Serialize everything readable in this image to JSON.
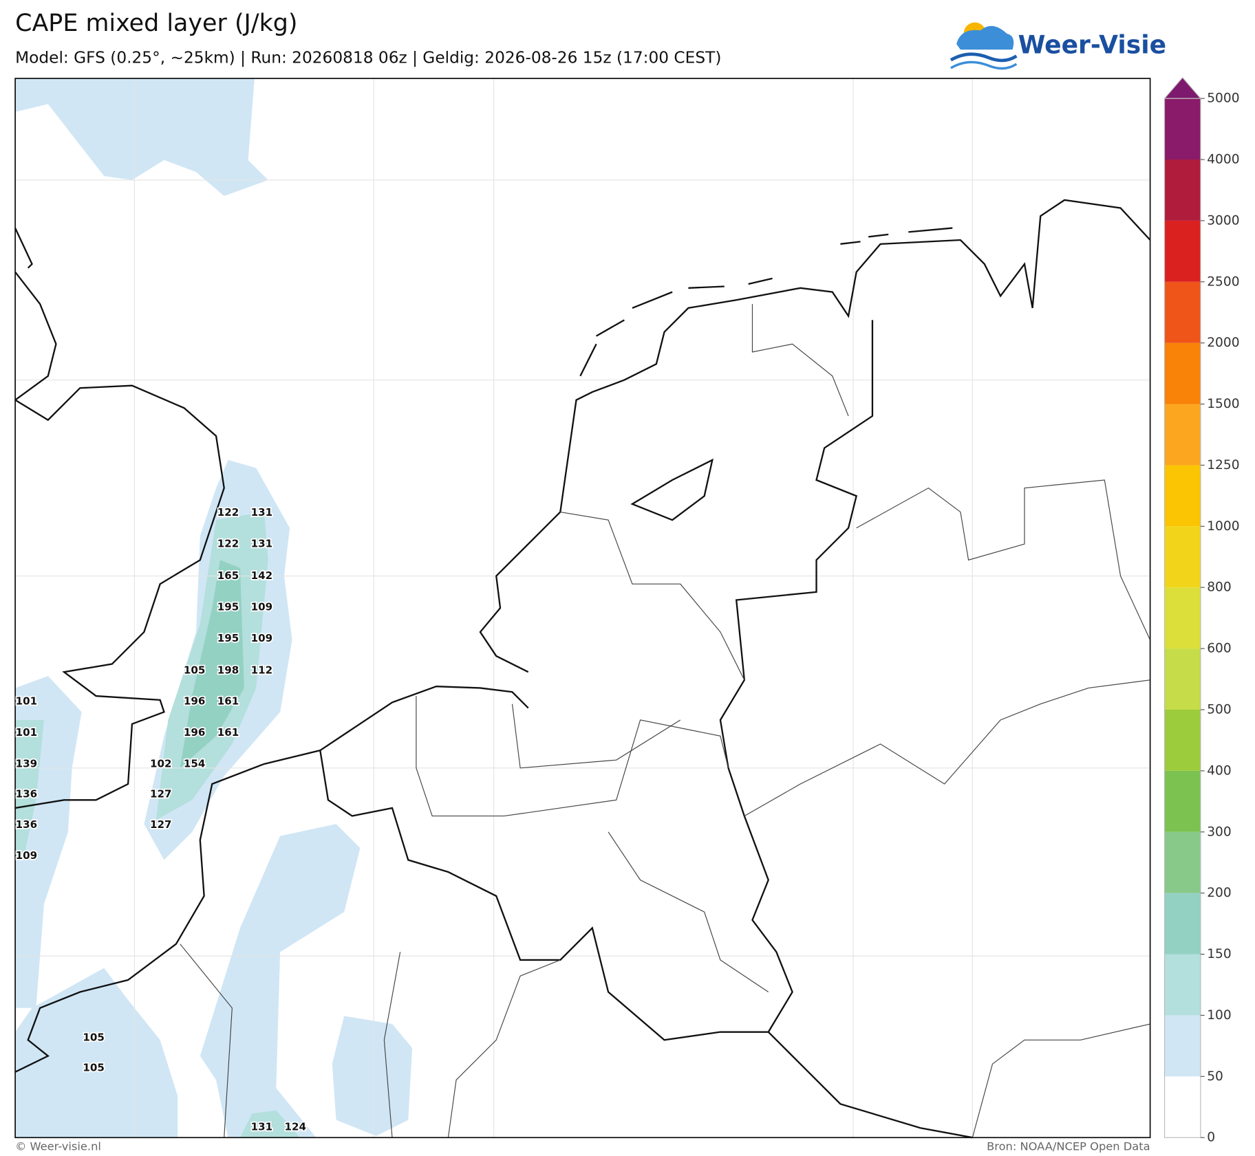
{
  "title": "CAPE mixed layer (J/kg)",
  "subtitle": "Model: GFS (0.25°, ~25km)  |  Run: 20260818 06z  |  Geldig: 2026-08-26 15z (17:00 CEST)",
  "logo": "Weer-Visie",
  "colorbar": {
    "ticks": [
      0,
      50,
      100,
      150,
      200,
      300,
      400,
      500,
      600,
      800,
      1000,
      1250,
      1500,
      2000,
      2500,
      3000,
      4000,
      5000
    ],
    "colors": [
      "#ffffff",
      "#d0e6f5",
      "#b3dfdc",
      "#93d1c3",
      "#88c98a",
      "#7bc251",
      "#9ccc3c",
      "#c6dc48",
      "#dcdf3a",
      "#f2d51a",
      "#fbc503",
      "#fca620",
      "#f98208",
      "#ef5419",
      "#db2020",
      "#b01c3c",
      "#8a1a6a"
    ],
    "extend_color": "#7e1a6e"
  },
  "labels": [
    122,
    131,
    122,
    131,
    165,
    142,
    195,
    109,
    195,
    109,
    105,
    198,
    112,
    101,
    196,
    161,
    101,
    196,
    161,
    139,
    102,
    154,
    136,
    127,
    136,
    127,
    109,
    105,
    105,
    131,
    124
  ],
  "footer": {
    "left": "© Weer-visie.nl",
    "right": "Bron: NOAA/NCEP Open Data"
  }
}
